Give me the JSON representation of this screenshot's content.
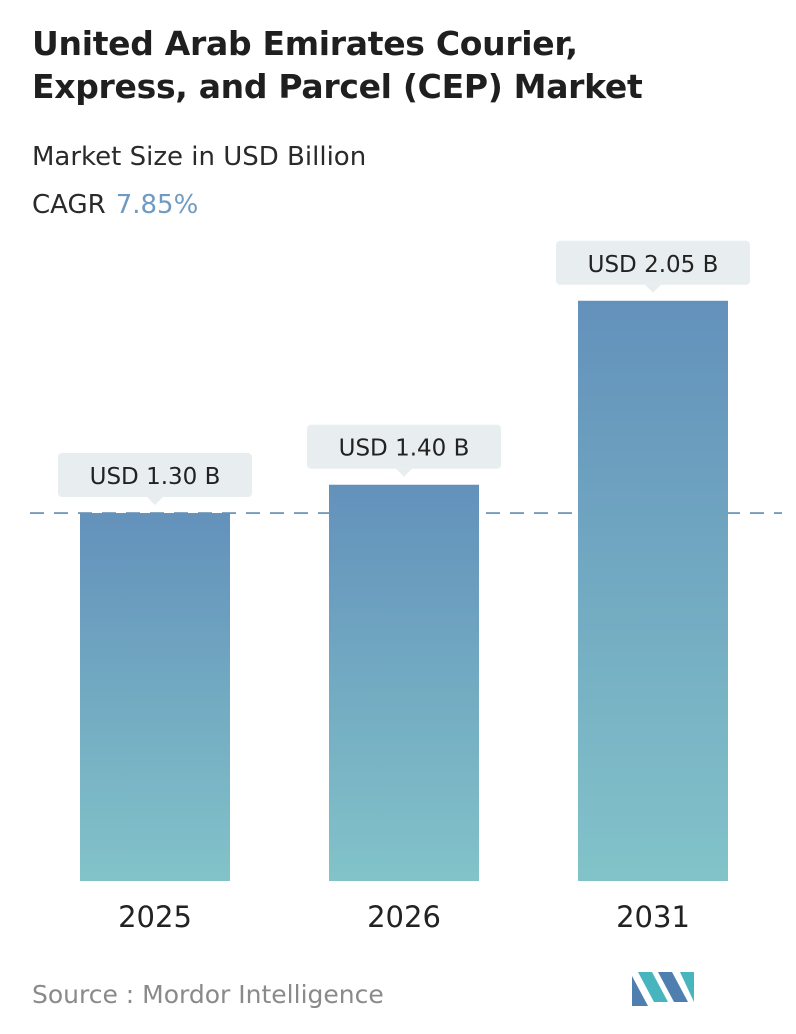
{
  "title_lines": [
    "United Arab Emirates Courier,",
    "Express, and Parcel (CEP) Market"
  ],
  "subtitle": "Market Size in USD Billion",
  "cagr_label": "CAGR",
  "cagr_value": "7.85%",
  "source_text": "Source :  Mordor Intelligence",
  "colors": {
    "bar_top": "#6391bb",
    "bar_bottom": "#82c3c9",
    "callout": "#e8eeef",
    "dashed": "#5e8cb0",
    "logo_a": "#4f7fae",
    "logo_b": "#48b4bd"
  },
  "chart_data": {
    "type": "bar",
    "categories": [
      "2025",
      "2026",
      "2031"
    ],
    "values": [
      1.3,
      1.4,
      2.05
    ],
    "data_labels": [
      "USD 1.30 B",
      "USD 1.40 B",
      "USD 2.05 B"
    ],
    "unit": "USD Billion",
    "ylim": [
      0,
      2.3
    ],
    "reference_line": 1.3,
    "grid": false,
    "legend": "none"
  }
}
